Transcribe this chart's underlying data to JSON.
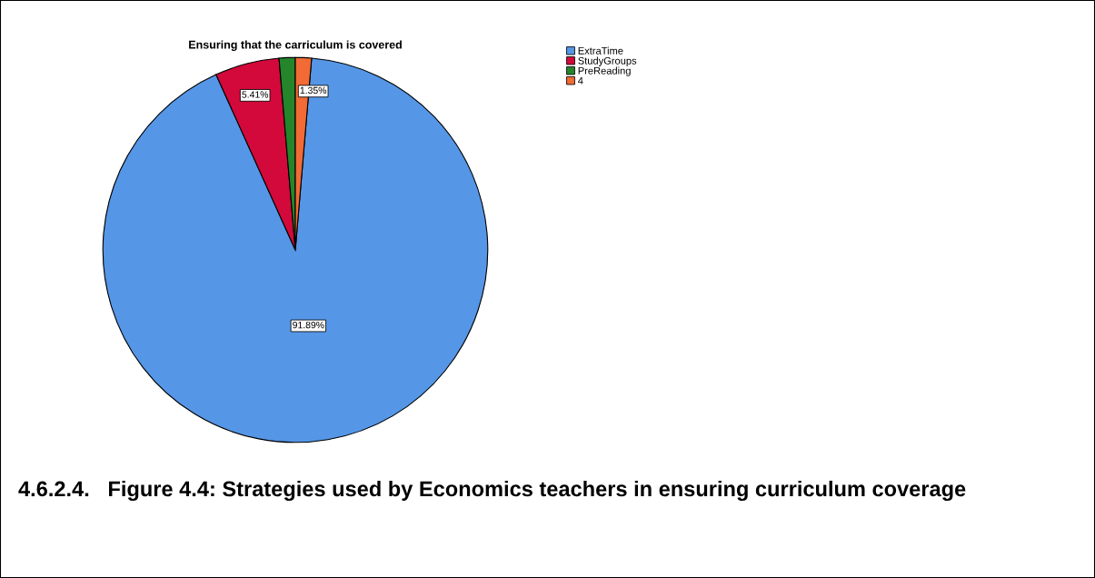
{
  "chart_data": {
    "type": "pie",
    "title": "Ensuring that the carriculum is covered",
    "categories": [
      "ExtraTime",
      "StudyGroups",
      "PreReading",
      "4"
    ],
    "values": [
      91.89,
      5.41,
      1.35,
      1.35
    ],
    "colors": [
      "#5596e6",
      "#d2093a",
      "#24852b",
      "#f26a35"
    ],
    "value_labels": [
      "91.89%",
      "5.41%",
      null,
      "1.35%"
    ],
    "legend": "top right",
    "annotations": [
      "4.6.2.4.   Figure 4.4: Strategies used by Economics teachers in ensuring curriculum coverage"
    ]
  }
}
